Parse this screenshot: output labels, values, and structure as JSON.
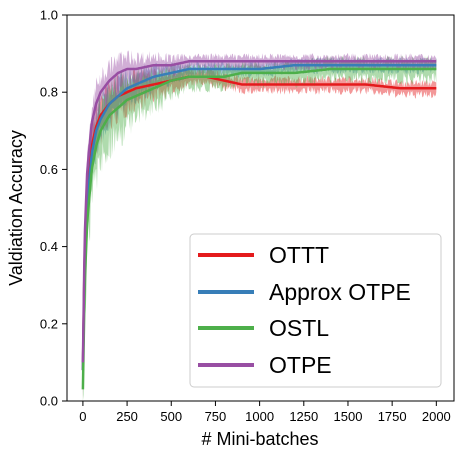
{
  "chart_data": {
    "type": "line",
    "xlabel": "# Mini-batches",
    "ylabel": "Valdiation Accuracy",
    "xlim": [
      -90,
      2100
    ],
    "ylim": [
      0.0,
      1.0
    ],
    "xticks": [
      0,
      250,
      500,
      750,
      1000,
      1250,
      1500,
      1750,
      2000
    ],
    "yticks": [
      0.0,
      0.2,
      0.4,
      0.6,
      0.8,
      1.0
    ],
    "xtick_labels": [
      "0",
      "250",
      "500",
      "750",
      "1000",
      "1250",
      "1500",
      "1750",
      "2000"
    ],
    "ytick_labels": [
      "0.0",
      "0.2",
      "0.4",
      "0.6",
      "0.8",
      "1.0"
    ],
    "grid": false,
    "legend_position": "lower-right",
    "series": [
      {
        "name": "OTTT",
        "color": "#e41a1c",
        "x": [
          0,
          10,
          25,
          50,
          75,
          100,
          150,
          200,
          250,
          300,
          400,
          500,
          600,
          700,
          800,
          900,
          1000,
          1200,
          1400,
          1600,
          1800,
          2000
        ],
        "y": [
          0.08,
          0.38,
          0.55,
          0.66,
          0.71,
          0.74,
          0.77,
          0.79,
          0.8,
          0.81,
          0.82,
          0.83,
          0.84,
          0.84,
          0.83,
          0.82,
          0.82,
          0.82,
          0.82,
          0.82,
          0.81,
          0.81
        ]
      },
      {
        "name": "Approx OTPE",
        "color": "#377eb8",
        "x": [
          0,
          10,
          25,
          50,
          75,
          100,
          150,
          200,
          250,
          300,
          400,
          500,
          600,
          700,
          800,
          900,
          1000,
          1200,
          1400,
          1600,
          1800,
          2000
        ],
        "y": [
          0.08,
          0.36,
          0.52,
          0.64,
          0.7,
          0.73,
          0.77,
          0.79,
          0.81,
          0.82,
          0.84,
          0.85,
          0.86,
          0.86,
          0.86,
          0.86,
          0.86,
          0.87,
          0.87,
          0.87,
          0.87,
          0.87
        ]
      },
      {
        "name": "OSTL",
        "color": "#4daf4a",
        "x": [
          0,
          10,
          25,
          50,
          75,
          100,
          150,
          200,
          250,
          300,
          400,
          500,
          600,
          700,
          800,
          900,
          1000,
          1200,
          1400,
          1600,
          1800,
          2000
        ],
        "y": [
          0.03,
          0.3,
          0.47,
          0.6,
          0.66,
          0.7,
          0.74,
          0.76,
          0.78,
          0.79,
          0.81,
          0.83,
          0.84,
          0.84,
          0.84,
          0.85,
          0.85,
          0.85,
          0.86,
          0.86,
          0.86,
          0.86
        ]
      },
      {
        "name": "OTPE",
        "color": "#984ea3",
        "x": [
          0,
          10,
          25,
          50,
          75,
          100,
          150,
          200,
          250,
          300,
          400,
          500,
          600,
          700,
          800,
          900,
          1000,
          1200,
          1400,
          1600,
          1800,
          2000
        ],
        "y": [
          0.1,
          0.42,
          0.6,
          0.72,
          0.77,
          0.8,
          0.83,
          0.85,
          0.86,
          0.86,
          0.87,
          0.87,
          0.88,
          0.88,
          0.88,
          0.88,
          0.88,
          0.88,
          0.88,
          0.88,
          0.88,
          0.88
        ]
      }
    ]
  }
}
